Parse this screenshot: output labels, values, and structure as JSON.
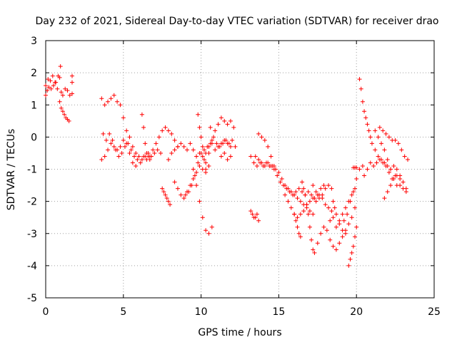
{
  "chart_data": {
    "type": "scatter",
    "title": "Day 232 of 2021, Sidereal Day-to-day VTEC variation (SDTVAR) for receiver drao",
    "xlabel": "GPS time / hours",
    "ylabel": "SDTVAR / TECUs",
    "xlim": [
      0,
      25
    ],
    "ylim": [
      -5,
      3
    ],
    "xticks": [
      "0",
      "5",
      "10",
      "15",
      "20",
      "25"
    ],
    "yticks": [
      "3",
      "2",
      "1",
      "0",
      "-1",
      "-2",
      "-3",
      "-4",
      "-5"
    ],
    "grid": true,
    "marker": "+",
    "color": "#ff0000",
    "series": [
      {
        "name": "s1",
        "x": [
          0.0,
          0.15,
          0.3,
          0.45,
          0.6,
          0.75,
          0.9,
          1.0,
          1.1,
          1.25,
          1.4,
          1.55,
          1.7
        ],
        "y": [
          1.6,
          1.8,
          1.75,
          1.9,
          1.7,
          1.5,
          1.85,
          1.4,
          1.3,
          1.5,
          1.45,
          1.3,
          1.35
        ]
      },
      {
        "name": "s2",
        "x": [
          0.0,
          0.1,
          0.2,
          0.35,
          0.5,
          0.65,
          0.8,
          0.95
        ],
        "y": [
          1.3,
          1.45,
          1.55,
          1.5,
          1.6,
          1.7,
          1.9,
          2.2
        ]
      },
      {
        "name": "s3",
        "x": [
          0.9,
          1.0,
          1.1,
          1.2,
          1.3,
          1.4,
          1.5
        ],
        "y": [
          1.1,
          0.9,
          0.8,
          0.7,
          0.6,
          0.55,
          0.5
        ]
      },
      {
        "name": "s4",
        "x": [
          3.6,
          3.8,
          4.0,
          4.2,
          4.4,
          4.6,
          4.8,
          5.0,
          5.2,
          5.4,
          5.6,
          5.8,
          6.0,
          6.2,
          6.4,
          6.6,
          6.8,
          7.0,
          7.2,
          7.4
        ],
        "y": [
          1.2,
          1.0,
          1.1,
          1.2,
          1.3,
          1.1,
          1.0,
          0.6,
          0.2,
          0.0,
          -0.3,
          -0.5,
          -0.6,
          -0.7,
          -0.6,
          -0.5,
          -0.6,
          -0.5,
          -0.4,
          -0.5
        ]
      },
      {
        "name": "s5",
        "x": [
          3.7,
          3.9,
          4.1,
          4.3,
          4.5,
          4.7,
          4.9,
          5.1,
          5.3,
          5.5,
          5.7,
          5.9,
          6.1,
          6.3,
          6.5,
          6.7,
          6.9,
          7.1,
          7.3,
          7.5,
          7.7,
          7.9,
          8.1,
          8.3,
          8.5
        ],
        "y": [
          0.1,
          -0.1,
          0.1,
          -0.1,
          -0.4,
          -0.6,
          -0.5,
          -0.3,
          -0.2,
          -0.4,
          -0.6,
          -0.7,
          -0.8,
          -0.6,
          -0.7,
          -0.6,
          -0.4,
          -0.2,
          0.0,
          0.2,
          0.3,
          0.2,
          0.1,
          -0.1,
          -0.3
        ]
      },
      {
        "name": "s6",
        "x": [
          3.6,
          3.8,
          4.0,
          4.2,
          4.4,
          4.6,
          4.8,
          5.0,
          5.2,
          5.4,
          5.6,
          5.8
        ],
        "y": [
          -0.7,
          -0.6,
          -0.4,
          -0.2,
          -0.3,
          -0.4,
          -0.3,
          -0.1,
          -0.2,
          -0.5,
          -0.8,
          -0.9
        ]
      },
      {
        "name": "s7",
        "x": [
          6.2,
          6.3,
          6.4,
          6.5,
          6.6,
          6.7
        ],
        "y": [
          0.7,
          0.3,
          -0.2,
          -0.5,
          -0.6,
          -0.7
        ]
      },
      {
        "name": "s8",
        "x": [
          7.5,
          7.6,
          7.7,
          7.8,
          7.9,
          8.0
        ],
        "y": [
          -1.6,
          -1.7,
          -1.8,
          -1.9,
          -2.0,
          -2.1
        ]
      },
      {
        "name": "s9",
        "x": [
          7.9,
          8.1,
          8.3,
          8.5,
          8.7,
          8.9,
          9.1,
          9.3,
          9.5,
          9.7,
          9.9,
          10.1,
          10.3,
          10.5,
          10.7,
          10.9,
          11.1,
          11.3,
          11.5,
          11.7,
          11.9
        ],
        "y": [
          -0.7,
          -0.5,
          -0.4,
          -0.3,
          -0.2,
          -0.3,
          -0.4,
          -0.2,
          -0.4,
          -0.6,
          -0.5,
          -0.6,
          -0.5,
          -0.3,
          -0.2,
          -0.4,
          -0.3,
          -0.2,
          -0.1,
          -0.2,
          -0.3
        ]
      },
      {
        "name": "s10",
        "x": [
          8.3,
          8.5,
          8.7,
          8.9,
          9.1,
          9.3,
          9.5,
          9.7,
          9.9,
          10.1,
          10.3,
          10.5
        ],
        "y": [
          -1.4,
          -1.6,
          -1.8,
          -1.9,
          -1.7,
          -1.5,
          -1.3,
          -1.1,
          -0.9,
          -1.0,
          -1.1,
          -0.9
        ]
      },
      {
        "name": "s11",
        "x": [
          9.0,
          9.2,
          9.4,
          9.6,
          9.8,
          10.0,
          10.2,
          10.4,
          10.6
        ],
        "y": [
          -1.8,
          -1.7,
          -1.5,
          -1.2,
          -0.8,
          -0.5,
          -0.4,
          -0.3,
          -0.2
        ]
      },
      {
        "name": "s12",
        "x": [
          9.5,
          9.7,
          9.9,
          10.1,
          10.3,
          10.5,
          10.7
        ],
        "y": [
          -1.0,
          -1.5,
          -2.0,
          -2.5,
          -2.9,
          -3.0,
          -2.8
        ]
      },
      {
        "name": "s13",
        "x": [
          9.8,
          9.9,
          10.0,
          10.1,
          10.2,
          10.3
        ],
        "y": [
          0.7,
          0.3,
          0.0,
          -0.3,
          -0.7,
          -1.0
        ]
      },
      {
        "name": "s14",
        "x": [
          10.3,
          10.5,
          10.7,
          10.9,
          11.1,
          11.3,
          11.5,
          11.7,
          11.9,
          12.1
        ],
        "y": [
          -0.8,
          -0.5,
          -0.1,
          0.2,
          0.4,
          0.6,
          0.5,
          0.4,
          0.5,
          0.3
        ]
      },
      {
        "name": "s15",
        "x": [
          10.6,
          10.8,
          11.0,
          11.2,
          11.4,
          11.6,
          11.8,
          12.0,
          12.2
        ],
        "y": [
          0.3,
          0.0,
          -0.2,
          -0.3,
          -0.2,
          -0.1,
          -0.2,
          -0.1,
          -0.3
        ]
      },
      {
        "name": "s16",
        "x": [
          11.3,
          11.5,
          11.7,
          11.9
        ],
        "y": [
          -0.6,
          -0.5,
          -0.7,
          -0.6
        ]
      },
      {
        "name": "s17",
        "x": [
          13.2,
          13.3,
          13.4,
          13.5,
          13.6,
          13.7
        ],
        "y": [
          -2.3,
          -2.4,
          -2.5,
          -2.5,
          -2.4,
          -2.6
        ]
      },
      {
        "name": "s18",
        "x": [
          13.2,
          13.4,
          13.6,
          13.8,
          14.0,
          14.2,
          14.4,
          14.6,
          14.8,
          15.0,
          15.2,
          15.4,
          15.6,
          15.8,
          16.0,
          16.2,
          16.4,
          16.6,
          16.8,
          17.0,
          17.2
        ],
        "y": [
          -0.6,
          -0.8,
          -0.9,
          -0.8,
          -0.9,
          -0.8,
          -0.9,
          -0.9,
          -1.0,
          -1.1,
          -1.3,
          -1.5,
          -1.6,
          -1.7,
          -1.8,
          -1.9,
          -2.0,
          -2.1,
          -2.2,
          -2.3,
          -2.4
        ]
      },
      {
        "name": "s19",
        "x": [
          13.7,
          13.9,
          14.1,
          14.3,
          14.5,
          14.7,
          14.9,
          15.1,
          15.3,
          15.5,
          15.7,
          15.9,
          16.1,
          16.3,
          16.5,
          16.7,
          16.9,
          17.1,
          17.3,
          17.5,
          17.7,
          17.9
        ],
        "y": [
          0.1,
          0.0,
          -0.1,
          -0.3,
          -0.6,
          -0.9,
          -1.2,
          -1.4,
          -1.5,
          -1.6,
          -1.7,
          -1.8,
          -1.7,
          -1.6,
          -1.7,
          -1.8,
          -1.7,
          -1.8,
          -1.9,
          -1.8,
          -1.6,
          -1.5
        ]
      },
      {
        "name": "s20",
        "x": [
          13.5,
          13.7,
          13.9,
          14.1,
          14.3,
          14.5,
          14.7
        ],
        "y": [
          -0.6,
          -0.7,
          -0.8,
          -0.9,
          -0.8,
          -0.9,
          -1.0
        ]
      },
      {
        "name": "s21",
        "x": [
          15.4,
          15.6,
          15.8,
          16.0,
          16.2,
          16.4,
          16.6,
          16.8,
          17.0,
          17.2,
          17.4,
          17.6,
          17.8,
          18.0,
          18.2,
          18.4
        ],
        "y": [
          -1.8,
          -2.0,
          -2.2,
          -2.4,
          -2.5,
          -2.4,
          -2.3,
          -2.1,
          -2.0,
          -1.9,
          -2.0,
          -1.9,
          -1.8,
          -1.6,
          -1.5,
          -1.6
        ]
      },
      {
        "name": "s22",
        "x": [
          16.0,
          16.1,
          16.2,
          16.3,
          16.4
        ],
        "y": [
          -2.4,
          -2.6,
          -2.8,
          -3.0,
          -3.1
        ]
      },
      {
        "name": "s23",
        "x": [
          16.5,
          16.6,
          16.7,
          16.8,
          16.9,
          17.0,
          17.1,
          17.2,
          17.3
        ],
        "y": [
          -1.4,
          -1.6,
          -1.8,
          -2.1,
          -2.4,
          -2.8,
          -3.2,
          -3.5,
          -3.6
        ]
      },
      {
        "name": "s24",
        "x": [
          17.2,
          17.4,
          17.6,
          17.8,
          18.0,
          18.2,
          18.4,
          18.6
        ],
        "y": [
          -1.5,
          -1.7,
          -1.8,
          -1.9,
          -2.1,
          -2.2,
          -2.3,
          -2.2
        ]
      },
      {
        "name": "s25",
        "x": [
          17.5,
          17.7,
          17.9,
          18.1,
          18.3,
          18.5,
          18.7,
          18.9,
          19.1,
          19.3,
          19.5,
          19.7,
          19.9
        ],
        "y": [
          -3.3,
          -3.0,
          -2.8,
          -2.9,
          -2.6,
          -2.5,
          -2.8,
          -2.6,
          -2.4,
          -2.2,
          -2.0,
          -1.8,
          -1.6
        ]
      },
      {
        "name": "s26",
        "x": [
          18.3,
          18.5,
          18.7,
          18.9,
          19.1,
          19.3,
          19.5,
          19.7,
          19.9
        ],
        "y": [
          -3.2,
          -3.4,
          -3.5,
          -3.3,
          -3.1,
          -2.9,
          -2.7,
          -2.5,
          -2.2
        ]
      },
      {
        "name": "s27",
        "x": [
          18.5,
          18.7,
          18.9,
          19.1,
          19.3
        ],
        "y": [
          -2.0,
          -2.4,
          -2.7,
          -2.9,
          -3.0
        ]
      },
      {
        "name": "s28",
        "x": [
          19.5,
          19.6,
          19.7,
          19.8,
          19.9,
          20.0
        ],
        "y": [
          -4.0,
          -3.8,
          -3.6,
          -3.4,
          -3.1,
          -2.8
        ]
      },
      {
        "name": "s29",
        "x": [
          20.2,
          20.3,
          20.4,
          20.5,
          20.6,
          20.7,
          20.8,
          20.9,
          21.0,
          21.2,
          21.4,
          21.6,
          21.8,
          22.0,
          22.2,
          22.4,
          22.6,
          22.8,
          23.0,
          23.2
        ],
        "y": [
          1.8,
          1.5,
          1.1,
          0.8,
          0.6,
          0.4,
          0.2,
          0.0,
          -0.2,
          -0.4,
          -0.6,
          -0.7,
          -0.8,
          -0.9,
          -1.0,
          -0.9,
          -1.0,
          -1.2,
          -1.4,
          -1.6
        ]
      },
      {
        "name": "s30",
        "x": [
          20.5,
          20.7,
          20.9,
          21.1,
          21.3,
          21.5,
          21.7,
          21.9,
          22.1,
          22.3,
          22.5
        ],
        "y": [
          -1.2,
          -1.0,
          -0.8,
          -0.9,
          -0.8,
          -0.7,
          -0.8,
          -0.9,
          -1.1,
          -1.3,
          -1.2
        ]
      },
      {
        "name": "s31",
        "x": [
          21.2,
          21.4,
          21.6,
          21.8,
          22.0,
          22.2,
          22.4,
          22.6,
          22.8,
          23.0,
          23.2
        ],
        "y": [
          0.2,
          0.0,
          -0.2,
          -0.4,
          -0.7,
          -1.0,
          -1.3,
          -1.5,
          -1.5,
          -1.6,
          -1.7
        ]
      },
      {
        "name": "s32",
        "x": [
          21.5,
          21.7,
          21.9,
          22.1,
          22.3,
          22.5,
          22.7,
          22.9,
          23.1,
          23.3
        ],
        "y": [
          0.3,
          0.2,
          0.1,
          0.0,
          -0.1,
          -0.1,
          -0.2,
          -0.4,
          -0.6,
          -0.7
        ]
      },
      {
        "name": "s33",
        "x": [
          21.8,
          22.0,
          22.2,
          22.4,
          22.6,
          22.8
        ],
        "y": [
          -1.9,
          -1.7,
          -1.5,
          -1.3,
          -1.2,
          -1.3
        ]
      },
      {
        "name": "s34",
        "x": [
          19.2,
          19.4,
          19.6,
          19.8,
          20.0,
          20.2,
          20.4
        ],
        "y": [
          -2.6,
          -2.4,
          -2.0,
          -1.7,
          -1.3,
          -1.0,
          -0.9
        ]
      },
      {
        "name": "s35",
        "x": [
          1.7,
          1.7,
          19.8,
          19.9,
          20.0
        ],
        "y": [
          1.9,
          1.7,
          -0.95,
          -0.95,
          -0.95
        ]
      }
    ]
  }
}
